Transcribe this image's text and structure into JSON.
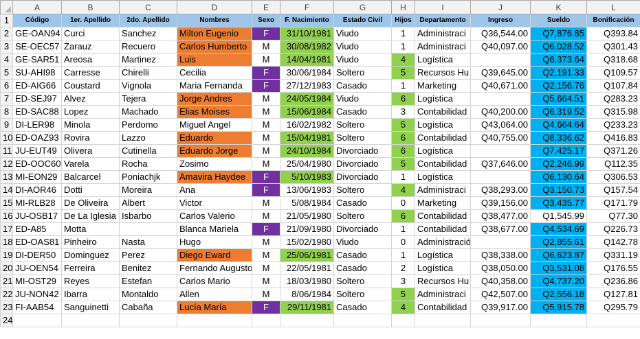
{
  "columns": [
    "A",
    "B",
    "C",
    "D",
    "E",
    "F",
    "G",
    "H",
    "I",
    "J",
    "K",
    "L"
  ],
  "headers": [
    "Código",
    "1er. Apellido",
    "2do. Apellido",
    "Nombres",
    "Sexo",
    "F. Nacimiento",
    "Estado Civil",
    "Hijos",
    "Departamento",
    "Ingreso",
    "Sueldo",
    "Bonificación"
  ],
  "rows": [
    {
      "n": "2",
      "cells": [
        "GE-OAN94",
        "Curci",
        "Sanchez",
        "Milton Eugenio",
        "F",
        "31/10/1981",
        "Viudo",
        "1",
        "Administraci",
        "Q36,544.00",
        "Q7,876.85",
        "Q393.84"
      ]
    },
    {
      "n": "3",
      "cells": [
        "SE-OEC57",
        "Zarauz",
        "Recuero",
        "Carlos Humberto",
        "M",
        "30/08/1982",
        "Viudo",
        "1",
        "Administraci",
        "Q40,097.00",
        "Q6,028.52",
        "Q301.43"
      ]
    },
    {
      "n": "4",
      "cells": [
        "GE-SAR51",
        "Areosa",
        "Martinez",
        "Luis",
        "M",
        "14/04/1981",
        "Viudo",
        "4",
        "Logística",
        "",
        "Q6,373.64",
        "Q318.68"
      ]
    },
    {
      "n": "5",
      "cells": [
        "SU-AHI98",
        "Carresse",
        "Chirelli",
        "Cecilia",
        "F",
        "30/06/1984",
        "Soltero",
        "5",
        "Recursos Hu",
        "Q39,645.00",
        "Q2,191.33",
        "Q109.57"
      ]
    },
    {
      "n": "6",
      "cells": [
        "ED-AIG66",
        "Coustard",
        "Vignola",
        "Maria Fernanda",
        "F",
        "27/12/1983",
        "Casado",
        "1",
        "Marketing",
        "Q40,671.00",
        "Q2,156.76",
        "Q107.84"
      ]
    },
    {
      "n": "7",
      "cells": [
        "ED-SEJ97",
        "Alvez",
        "Tejera",
        "Jorge Andres",
        "M",
        "24/05/1984",
        "Viudo",
        "6",
        "Logística",
        "",
        "Q5,664.51",
        "Q283.23"
      ]
    },
    {
      "n": "8",
      "cells": [
        "ED-SAC88",
        "Lopez",
        "Machado",
        "Elias Moises",
        "M",
        "15/06/1984",
        "Casado",
        "3",
        "Contabilidad",
        "Q40,200.00",
        "Q6,319.52",
        "Q315.98"
      ]
    },
    {
      "n": "9",
      "cells": [
        "DI-LER98",
        "Minola",
        "Perdomo",
        "Miguel Angel",
        "M",
        "16/02/1982",
        "Soltero",
        "5",
        "Logística",
        "Q43,064.00",
        "Q4,664.64",
        "Q233.23"
      ]
    },
    {
      "n": "10",
      "cells": [
        "ED-OAZ93",
        "Rovira",
        "Lazzo",
        "Eduardo",
        "M",
        "15/04/1981",
        "Soltero",
        "6",
        "Contabilidad",
        "Q40,755.00",
        "Q8,336.62",
        "Q416.83"
      ]
    },
    {
      "n": "11",
      "cells": [
        "JU-EUT49",
        "Olivera",
        "Cutinella",
        "Eduardo Jorge",
        "M",
        "24/10/1984",
        "Divorciado",
        "6",
        "Logística",
        "",
        "Q7,425.17",
        "Q371.26"
      ]
    },
    {
      "n": "12",
      "cells": [
        "ED-OOC60",
        "Varela",
        "Rocha",
        "Zosimo",
        "M",
        "25/04/1980",
        "Divorciado",
        "5",
        "Contabilidad",
        "Q37,646.00",
        "Q2,246.99",
        "Q112.35"
      ]
    },
    {
      "n": "13",
      "cells": [
        "MI-EON29",
        "Balcarcel",
        "Poniachjk",
        "Amavira Haydee",
        "F",
        "5/10/1983",
        "Divorciado",
        "1",
        "Logística",
        "",
        "Q6,130.64",
        "Q306.53"
      ]
    },
    {
      "n": "14",
      "cells": [
        "DI-AOR46",
        "Dotti",
        "Moreira",
        "Ana",
        "F",
        "13/06/1983",
        "Soltero",
        "4",
        "Administraci",
        "Q38,293.00",
        "Q3,150.73",
        "Q157.54"
      ]
    },
    {
      "n": "15",
      "cells": [
        "MI-RLB28",
        "De Oliveira",
        "Albert",
        "Victor",
        "M",
        "5/08/1984",
        "Casado",
        "0",
        "Marketing",
        "Q39,156.00",
        "Q3,435.77",
        "Q171.79"
      ]
    },
    {
      "n": "16",
      "cells": [
        "JU-OSB17",
        "De La Iglesia",
        "Isbarbo",
        "Carlos Valerio",
        "M",
        "21/05/1980",
        "Soltero",
        "6",
        "Contabilidad",
        "Q38,477.00",
        "Q1,545.99",
        "Q77.30"
      ]
    },
    {
      "n": "17",
      "cells": [
        "ED-A85",
        "Motta",
        "",
        "Blanca Mariela",
        "F",
        "21/09/1980",
        "Divorciado",
        "1",
        "Contabilidad",
        "Q38,677.00",
        "Q4,534.69",
        "Q226.73"
      ]
    },
    {
      "n": "18",
      "cells": [
        "ED-OAS81",
        "Pinheiro",
        "Nasta",
        "Hugo",
        "M",
        "15/02/1980",
        "Viudo",
        "0",
        "Administración",
        "",
        "Q2,855.61",
        "Q142.78"
      ]
    },
    {
      "n": "19",
      "cells": [
        "DI-DER50",
        "Dominguez",
        "Perez",
        "Diego Eward",
        "M",
        "25/06/1981",
        "Casado",
        "1",
        "Logística",
        "Q38,338.00",
        "Q6,623.87",
        "Q331.19"
      ]
    },
    {
      "n": "20",
      "cells": [
        "JU-OEN54",
        "Ferreira",
        "Benitez",
        "Fernando Augusto",
        "M",
        "22/05/1981",
        "Casado",
        "2",
        "Logística",
        "Q38,050.00",
        "Q3,531.08",
        "Q176.55"
      ]
    },
    {
      "n": "21",
      "cells": [
        "MI-OST29",
        "Reyes",
        "Estefan",
        "Carlos Mario",
        "M",
        "18/03/1980",
        "Soltero",
        "3",
        "Recursos Hu",
        "Q40,358.00",
        "Q4,737.20",
        "Q236.86"
      ]
    },
    {
      "n": "22",
      "cells": [
        "JU-NON42",
        "Ibarra",
        "Montaldo",
        "Allen",
        "M",
        "8/06/1984",
        "Soltero",
        "5",
        "Administraci",
        "Q42,507.00",
        "Q2,556.18",
        "Q127.81"
      ]
    },
    {
      "n": "23",
      "cells": [
        "FI-AAB54",
        "Sanguinetti",
        "Cabaña",
        "Lucía María",
        "F",
        "29/11/1981",
        "Casado",
        "4",
        "Contabilidad",
        "Q39,917.00",
        "Q5,915.78",
        "Q295.79"
      ]
    },
    {
      "n": "24",
      "cells": [
        "",
        "",
        "",
        "",
        "",
        "",
        "",
        "",
        "",
        "",
        "",
        ""
      ]
    }
  ],
  "colors": {
    "orange": "#ed7d31",
    "purple": "#7030a0",
    "green": "#92d050",
    "blue": "#00b0f0",
    "header": "#9fc5e8"
  }
}
